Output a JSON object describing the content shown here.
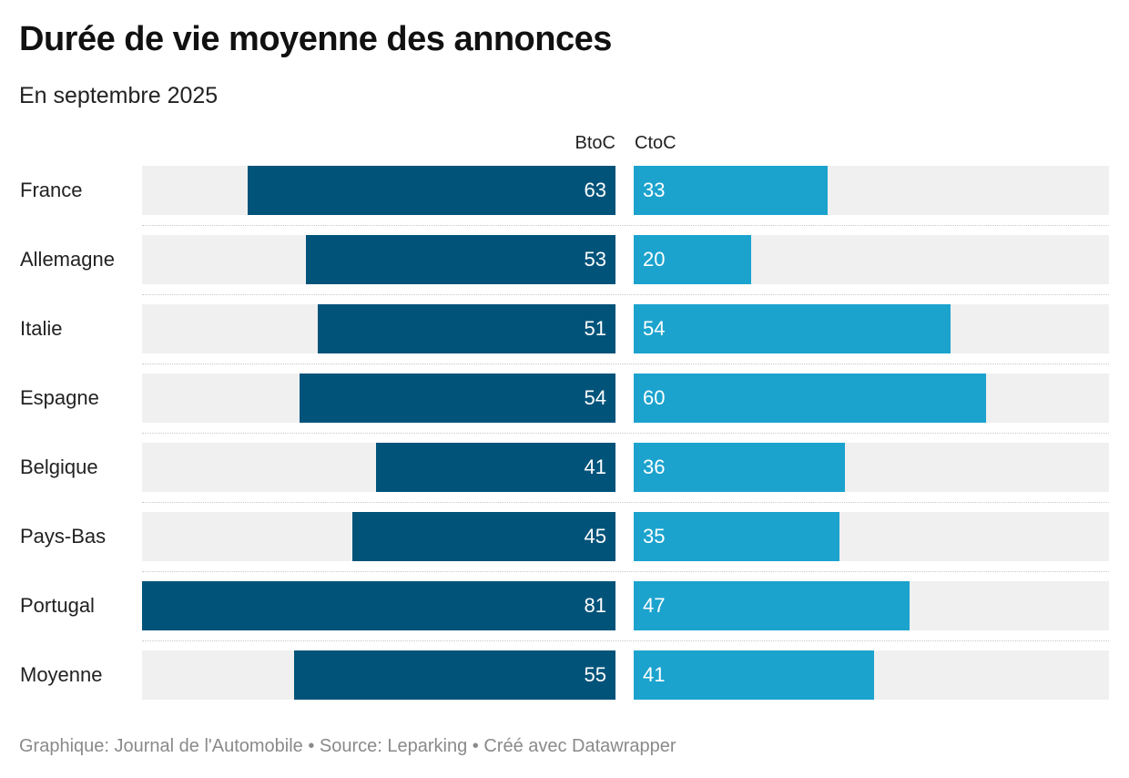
{
  "title": "Durée de vie moyenne des annonces",
  "subtitle": "En septembre 2025",
  "footer": "Graphique: Journal de l'Automobile • Source: Leparking  • Créé avec Datawrapper",
  "colors": {
    "btoc": "#01537a",
    "ctoc": "#1ba3ce",
    "track": "#f0f0f0"
  },
  "chart_data": {
    "type": "bar",
    "orientation": "horizontal-split",
    "categories": [
      "France",
      "Allemagne",
      "Italie",
      "Espagne",
      "Belgique",
      "Pays-Bas",
      "Portugal",
      "Moyenne"
    ],
    "series": [
      {
        "name": "BtoC",
        "values": [
          63,
          53,
          51,
          54,
          41,
          45,
          81,
          55
        ]
      },
      {
        "name": "CtoC",
        "values": [
          33,
          20,
          54,
          60,
          36,
          35,
          47,
          41
        ]
      }
    ],
    "xlim_btoc": [
      0,
      81
    ],
    "xlim_ctoc": [
      0,
      81
    ]
  }
}
